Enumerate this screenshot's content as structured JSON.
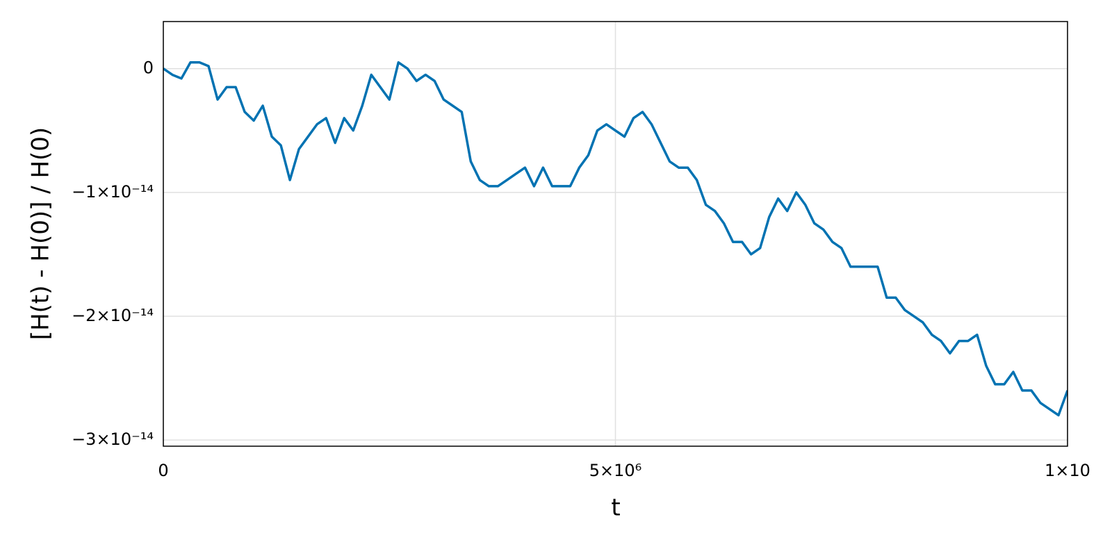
{
  "chart_data": {
    "type": "line",
    "x_label": "t",
    "y_label": "[H(t) - H(0)] / H(0)",
    "xlim": [
      0,
      10000000
    ],
    "ylim": [
      -3.05e-14,
      3.8e-15
    ],
    "xticks": [
      0,
      {
        "value": 5000000,
        "label": "5×10⁶"
      },
      {
        "value": 10000000,
        "label": "1×10"
      }
    ],
    "yticks": [
      0,
      {
        "value": -1e-14,
        "label": "−1×10⁻¹⁴"
      },
      {
        "value": -2e-14,
        "label": "−2×10⁻¹⁴"
      },
      {
        "value": -3e-14,
        "label": "−3×10⁻¹⁴"
      }
    ],
    "grid": true,
    "series": [
      {
        "color": "#0072b2",
        "x": [
          0,
          100000,
          200000,
          300000,
          400000,
          500000,
          600000,
          700000,
          800000,
          900000,
          1000000,
          1100000,
          1200000,
          1300000,
          1400000,
          1500000,
          1600000,
          1700000,
          1800000,
          1900000,
          2000000,
          2100000,
          2200000,
          2300000,
          2400000,
          2500000,
          2600000,
          2700000,
          2800000,
          2900000,
          3000000,
          3100000,
          3200000,
          3300000,
          3400000,
          3500000,
          3600000,
          3700000,
          3800000,
          3900000,
          4000000,
          4100000,
          4200000,
          4300000,
          4400000,
          4500000,
          4600000,
          4700000,
          4800000,
          4900000,
          5000000,
          5100000,
          5200000,
          5300000,
          5400000,
          5500000,
          5600000,
          5700000,
          5800000,
          5900000,
          6000000,
          6100000,
          6200000,
          6300000,
          6400000,
          6500000,
          6600000,
          6700000,
          6800000,
          6900000,
          7000000,
          7100000,
          7200000,
          7300000,
          7400000,
          7500000,
          7600000,
          7700000,
          7800000,
          7900000,
          8000000,
          8100000,
          8200000,
          8300000,
          8400000,
          8500000,
          8600000,
          8700000,
          8800000,
          8900000,
          9000000,
          9100000,
          9200000,
          9300000,
          9400000,
          9500000,
          9600000,
          9700000,
          9800000,
          9900000,
          10000000
        ],
        "values": [
          0,
          -5e-16,
          -8e-16,
          5e-16,
          5e-16,
          2e-16,
          -2.5e-15,
          -1.5e-15,
          -1.5e-15,
          -3.5e-15,
          -4.2e-15,
          -3e-15,
          -5.5e-15,
          -6.2e-15,
          -9e-15,
          -6.5e-15,
          -5.5e-15,
          -4.5e-15,
          -4e-15,
          -6e-15,
          -4e-15,
          -5e-15,
          -3e-15,
          -5e-16,
          -1.5e-15,
          -2.5e-15,
          5e-16,
          0,
          -1e-15,
          -5e-16,
          -1e-15,
          -2.5e-15,
          -3e-15,
          -3.5e-15,
          -7.5e-15,
          -9e-15,
          -9.5e-15,
          -9.5e-15,
          -9e-15,
          -8.5e-15,
          -8e-15,
          -9.5e-15,
          -8e-15,
          -9.5e-15,
          -9.5e-15,
          -9.5e-15,
          -8e-15,
          -7e-15,
          -5e-15,
          -4.5e-15,
          -5e-15,
          -5.5e-15,
          -4e-15,
          -3.5e-15,
          -4.5e-15,
          -6e-15,
          -7.5e-15,
          -8e-15,
          -8e-15,
          -9e-15,
          -1.1e-14,
          -1.15e-14,
          -1.25e-14,
          -1.4e-14,
          -1.4e-14,
          -1.5e-14,
          -1.45e-14,
          -1.2e-14,
          -1.05e-14,
          -1.15e-14,
          -1e-14,
          -1.1e-14,
          -1.25e-14,
          -1.3e-14,
          -1.4e-14,
          -1.45e-14,
          -1.6e-14,
          -1.6e-14,
          -1.6e-14,
          -1.6e-14,
          -1.85e-14,
          -1.85e-14,
          -1.95e-14,
          -2e-14,
          -2.05e-14,
          -2.15e-14,
          -2.2e-14,
          -2.3e-14,
          -2.2e-14,
          -2.2e-14,
          -2.15e-14,
          -2.4e-14,
          -2.55e-14,
          -2.55e-14,
          -2.45e-14,
          -2.6e-14,
          -2.6e-14,
          -2.7e-14,
          -2.75e-14,
          -2.8e-14,
          -2.6e-14
        ]
      }
    ]
  }
}
